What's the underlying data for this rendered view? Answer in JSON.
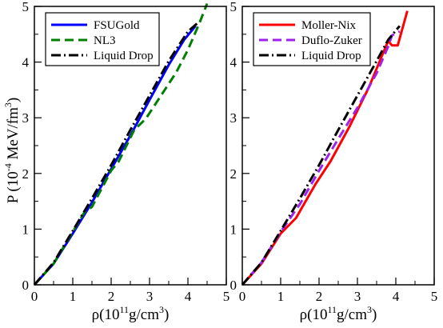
{
  "y_axis_label": {
    "main": "P (10",
    "exp1": "-4",
    "mid": " MeV/fm",
    "exp2": "3",
    "end": ")"
  },
  "chart_data": [
    {
      "type": "line",
      "xlabel": {
        "main": "ρ(10",
        "exp1": "11",
        "mid": "g/cm",
        "exp2": "3",
        "end": ")"
      },
      "xlim": [
        0,
        5
      ],
      "ylim": [
        0,
        5
      ],
      "xticks": [
        "0",
        "1",
        "2",
        "3",
        "4",
        "5"
      ],
      "yticks": [
        "0",
        "1",
        "2",
        "3",
        "4",
        "5"
      ],
      "legend_position": "top-left",
      "series": [
        {
          "name": "FSUGold",
          "color": "#0000ff",
          "dash": "solid",
          "x": [
            0,
            0.5,
            1.0,
            1.5,
            2.0,
            2.5,
            3.0,
            3.5,
            3.9,
            4.2
          ],
          "y": [
            0,
            0.38,
            0.92,
            1.48,
            2.08,
            2.68,
            3.32,
            3.95,
            4.4,
            4.65
          ]
        },
        {
          "name": "NL3",
          "color": "#008000",
          "dash": "dashed",
          "x": [
            0,
            0.5,
            1.0,
            1.3,
            1.5,
            2.0,
            2.2,
            2.6,
            2.9,
            3.3,
            3.7,
            4.0,
            4.3,
            4.5
          ],
          "y": [
            0,
            0.38,
            0.95,
            1.3,
            1.4,
            2.05,
            2.22,
            2.78,
            2.98,
            3.4,
            3.82,
            4.22,
            4.7,
            5.05
          ]
        },
        {
          "name": "Liquid Drop",
          "color": "#000000",
          "dash": "dashdot",
          "x": [
            0,
            0.5,
            1.0,
            1.5,
            2.0,
            2.5,
            3.0,
            3.5,
            4.0,
            4.25
          ],
          "y": [
            0,
            0.4,
            0.97,
            1.55,
            2.15,
            2.78,
            3.4,
            4.02,
            4.55,
            4.7
          ]
        }
      ]
    },
    {
      "type": "line",
      "xlabel": {
        "main": "ρ(10",
        "exp1": "11",
        "mid": "g/cm",
        "exp2": "3",
        "end": ")"
      },
      "xlim": [
        0,
        5
      ],
      "ylim": [
        0,
        5
      ],
      "xticks": [
        "0",
        "1",
        "2",
        "3",
        "4",
        "5"
      ],
      "yticks": [
        "0",
        "1",
        "2",
        "3",
        "4",
        "5"
      ],
      "legend_position": "top-left",
      "series": [
        {
          "name": "Moller-Nix",
          "color": "#ff0000",
          "dash": "solid",
          "x": [
            0,
            0.5,
            1.0,
            1.4,
            1.9,
            2.3,
            2.8,
            3.3,
            3.8,
            3.9,
            4.05,
            4.3
          ],
          "y": [
            0,
            0.38,
            0.92,
            1.2,
            1.8,
            2.22,
            2.85,
            3.55,
            4.38,
            4.3,
            4.3,
            4.92
          ]
        },
        {
          "name": "Duflo-Zuker",
          "color": "#a020f0",
          "dash": "dashed",
          "x": [
            0,
            0.5,
            1.0,
            1.5,
            2.0,
            2.5,
            3.0,
            3.5,
            3.8,
            3.9,
            4.1
          ],
          "y": [
            0,
            0.4,
            0.95,
            1.45,
            2.05,
            2.62,
            3.18,
            3.8,
            4.28,
            4.48,
            4.55
          ]
        },
        {
          "name": "Liquid Drop",
          "color": "#000000",
          "dash": "dashdot",
          "x": [
            0,
            0.5,
            1.0,
            1.5,
            2.0,
            2.5,
            3.0,
            3.5,
            3.8,
            4.1
          ],
          "y": [
            0,
            0.4,
            0.97,
            1.55,
            2.15,
            2.78,
            3.4,
            4.02,
            4.4,
            4.65
          ]
        }
      ]
    }
  ]
}
